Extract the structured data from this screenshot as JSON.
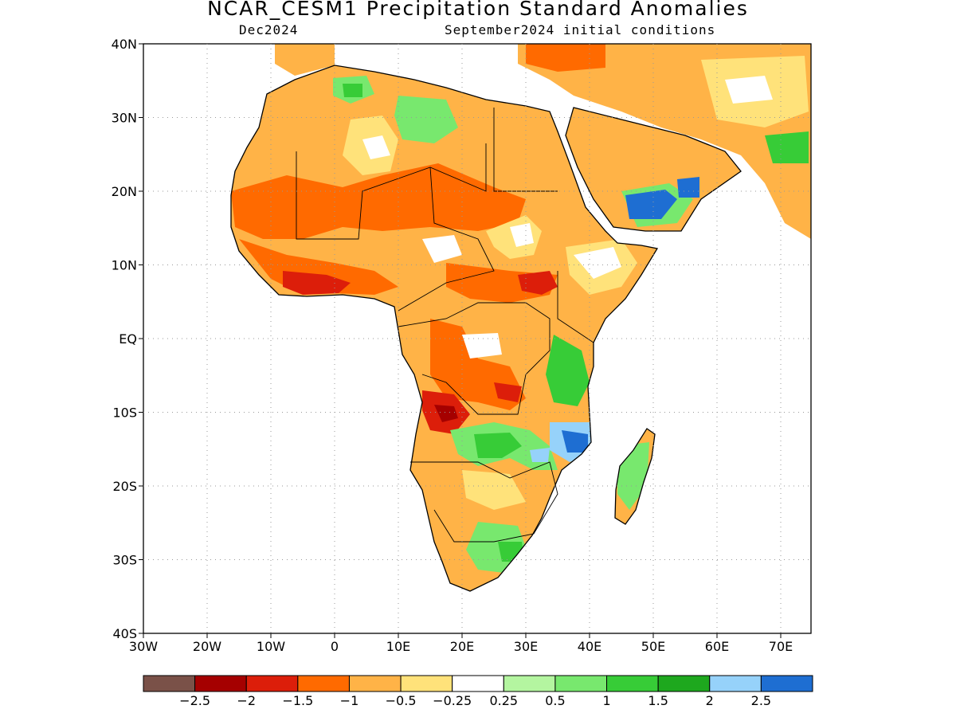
{
  "title": "NCAR_CESM1 Precipitation Standard Anomalies",
  "subtitle_left": "Dec2024",
  "subtitle_right": "September2024 initial conditions",
  "y_ticks": [
    "40N",
    "30N",
    "20N",
    "10N",
    "EQ",
    "10S",
    "20S",
    "30S",
    "40S"
  ],
  "x_ticks": [
    "30W",
    "20W",
    "10W",
    "0",
    "10E",
    "20E",
    "30E",
    "40E",
    "50E",
    "60E",
    "70E"
  ],
  "colorbar": {
    "colors": [
      "#7a5148",
      "#a50000",
      "#dc1e0a",
      "#ff6a00",
      "#ffb347",
      "#ffe27a",
      "#ffffff",
      "#b4f5a0",
      "#78e86e",
      "#37cc37",
      "#1ea81e",
      "#96d2fa",
      "#1e6ed2"
    ],
    "labels": [
      "−2.5",
      "−2",
      "−1.5",
      "−1",
      "−0.5",
      "−0.25",
      "0.25",
      "0.5",
      "1",
      "1.5",
      "2",
      "2.5"
    ]
  },
  "map_colors": {
    "light_orange": "#ffb347",
    "orange": "#ff6a00",
    "red": "#dc1e0a",
    "dark_red": "#a50000",
    "yellow": "#ffe27a",
    "white": "#ffffff",
    "pale_green": "#b4f5a0",
    "light_green": "#78e86e",
    "green": "#37cc37",
    "light_blue": "#96d2fa",
    "blue": "#1e6ed2",
    "coast": "#000000"
  }
}
